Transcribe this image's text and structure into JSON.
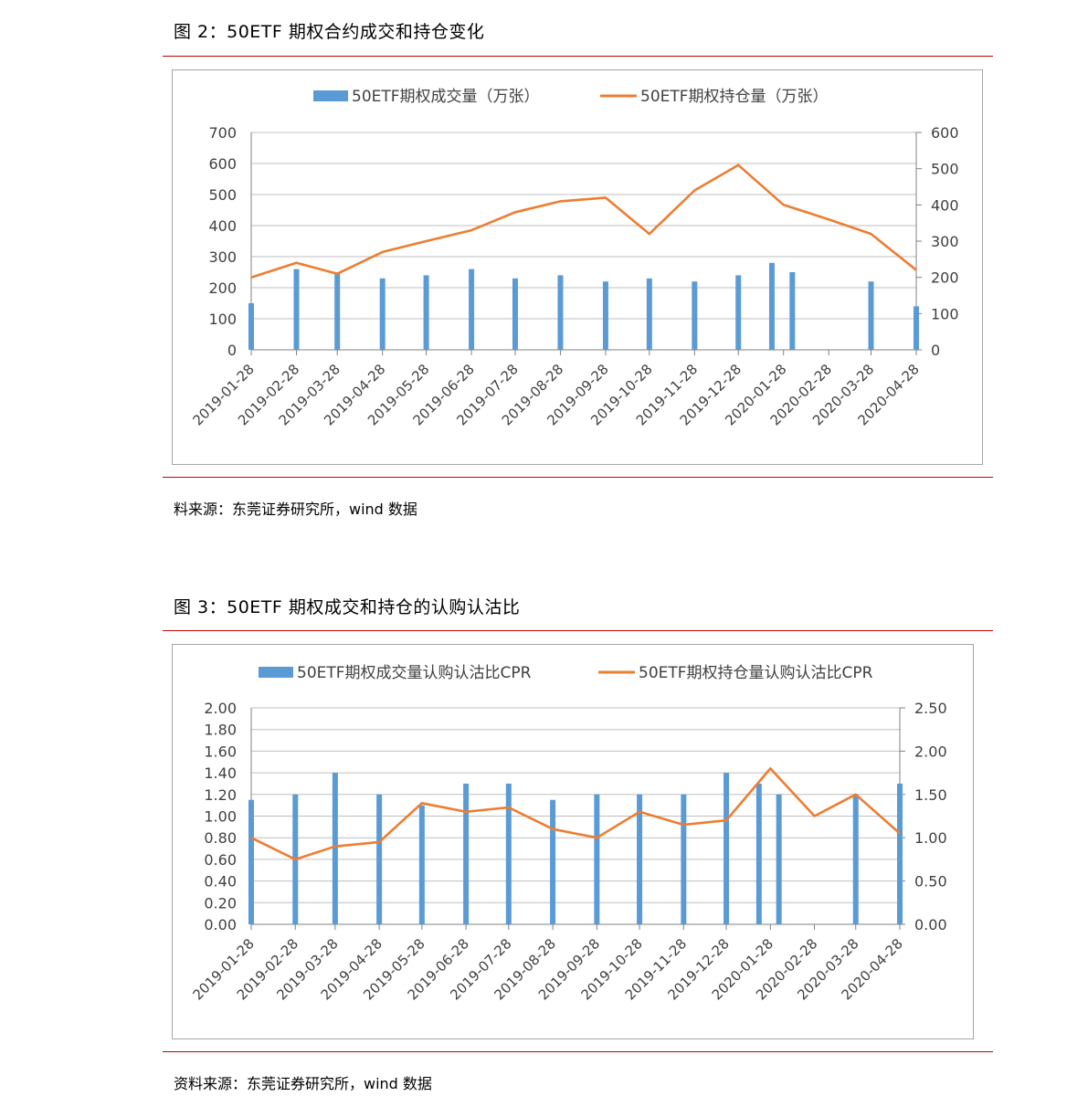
{
  "figure2": {
    "title": "图 2：50ETF 期权合约成交和持仓变化",
    "source": "料来源：东莞证券研究所，wind 数据"
  },
  "figure3": {
    "title": "图 3：50ETF 期权成交和持仓的认购认沽比",
    "source": "资料来源：东莞证券研究所，wind 数据"
  },
  "colors": {
    "bar": "#5b9bd5",
    "line": "#ed7d31",
    "rule": "#c00000",
    "grid": "#bfbfbf"
  },
  "chart_data": [
    {
      "type": "bar",
      "combo": "bar+line (dual axis)",
      "legend_position": "top",
      "grid": true,
      "x_tick_labels": [
        "2019-01-28",
        "2019-02-28",
        "2019-03-28",
        "2019-04-28",
        "2019-05-28",
        "2019-06-28",
        "2019-07-28",
        "2019-08-28",
        "2019-09-28",
        "2019-10-28",
        "2019-11-28",
        "2019-12-28",
        "2020-01-28",
        "2020-02-28",
        "2020-03-28",
        "2020-04-28"
      ],
      "ylim_left": [
        0,
        700
      ],
      "yticks_left": [
        "0",
        "100",
        "200",
        "300",
        "400",
        "500",
        "600",
        "700"
      ],
      "ylim_right": [
        0,
        600
      ],
      "yticks_right": [
        "0",
        "100",
        "200",
        "300",
        "400",
        "500",
        "600"
      ],
      "series": [
        {
          "name": "50ETF期权成交量（万张）",
          "type": "bar",
          "axis": "left",
          "x": [
            "2019-01-28",
            "2019-02-28",
            "2019-03-28",
            "2019-04-28",
            "2019-05-28",
            "2019-06-28",
            "2019-07-28",
            "2019-08-28",
            "2019-09-28",
            "2019-10-28",
            "2019-11-28",
            "2019-12-28",
            "2020-01-20",
            "2020-02-03",
            "2020-03-28",
            "2020-04-28"
          ],
          "y": [
            150,
            260,
            250,
            230,
            240,
            260,
            230,
            240,
            220,
            230,
            220,
            240,
            280,
            250,
            220,
            140
          ]
        },
        {
          "name": "50ETF期权持仓量（万张）",
          "type": "line",
          "axis": "right",
          "x": [
            "2019-01-28",
            "2019-02-28",
            "2019-03-28",
            "2019-04-28",
            "2019-05-28",
            "2019-06-28",
            "2019-07-28",
            "2019-08-28",
            "2019-09-28",
            "2019-10-28",
            "2019-11-28",
            "2019-12-28",
            "2020-01-28",
            "2020-02-28",
            "2020-03-28",
            "2020-04-28"
          ],
          "y": [
            200,
            240,
            210,
            270,
            300,
            330,
            380,
            410,
            420,
            320,
            440,
            510,
            400,
            360,
            320,
            220
          ]
        }
      ]
    },
    {
      "type": "bar",
      "combo": "bar+line (dual axis)",
      "legend_position": "top",
      "grid": true,
      "x_tick_labels": [
        "2019-01-28",
        "2019-02-28",
        "2019-03-28",
        "2019-04-28",
        "2019-05-28",
        "2019-06-28",
        "2019-07-28",
        "2019-08-28",
        "2019-09-28",
        "2019-10-28",
        "2019-11-28",
        "2019-12-28",
        "2020-01-28",
        "2020-02-28",
        "2020-03-28",
        "2020-04-28"
      ],
      "ylim_left": [
        0,
        2.0
      ],
      "yticks_left": [
        "0.00",
        "0.20",
        "0.40",
        "0.60",
        "0.80",
        "1.00",
        "1.20",
        "1.40",
        "1.60",
        "1.80",
        "2.00"
      ],
      "ylim_right": [
        0,
        2.5
      ],
      "yticks_right": [
        "0.00",
        "0.50",
        "1.00",
        "1.50",
        "2.00",
        "2.50"
      ],
      "series": [
        {
          "name": "50ETF期权成交量认购认沽比CPR",
          "type": "bar",
          "axis": "left",
          "x": [
            "2019-01-28",
            "2019-02-28",
            "2019-03-28",
            "2019-04-28",
            "2019-05-28",
            "2019-06-28",
            "2019-07-28",
            "2019-08-28",
            "2019-09-28",
            "2019-10-28",
            "2019-11-28",
            "2019-12-28",
            "2020-01-20",
            "2020-02-03",
            "2020-03-28",
            "2020-04-28"
          ],
          "y": [
            1.15,
            1.2,
            1.4,
            1.2,
            1.1,
            1.3,
            1.3,
            1.15,
            1.2,
            1.2,
            1.2,
            1.4,
            1.3,
            1.2,
            1.2,
            1.3
          ]
        },
        {
          "name": "50ETF期权持仓量认购认沽比CPR",
          "type": "line",
          "axis": "right",
          "x": [
            "2019-01-28",
            "2019-02-28",
            "2019-03-28",
            "2019-04-28",
            "2019-05-28",
            "2019-06-28",
            "2019-07-28",
            "2019-08-28",
            "2019-09-28",
            "2019-10-28",
            "2019-11-28",
            "2019-12-28",
            "2020-01-28",
            "2020-02-28",
            "2020-03-28",
            "2020-04-28"
          ],
          "y": [
            1.0,
            0.75,
            0.9,
            0.95,
            1.4,
            1.3,
            1.35,
            1.1,
            1.0,
            1.3,
            1.15,
            1.2,
            1.8,
            1.25,
            1.5,
            1.05
          ]
        }
      ]
    }
  ]
}
